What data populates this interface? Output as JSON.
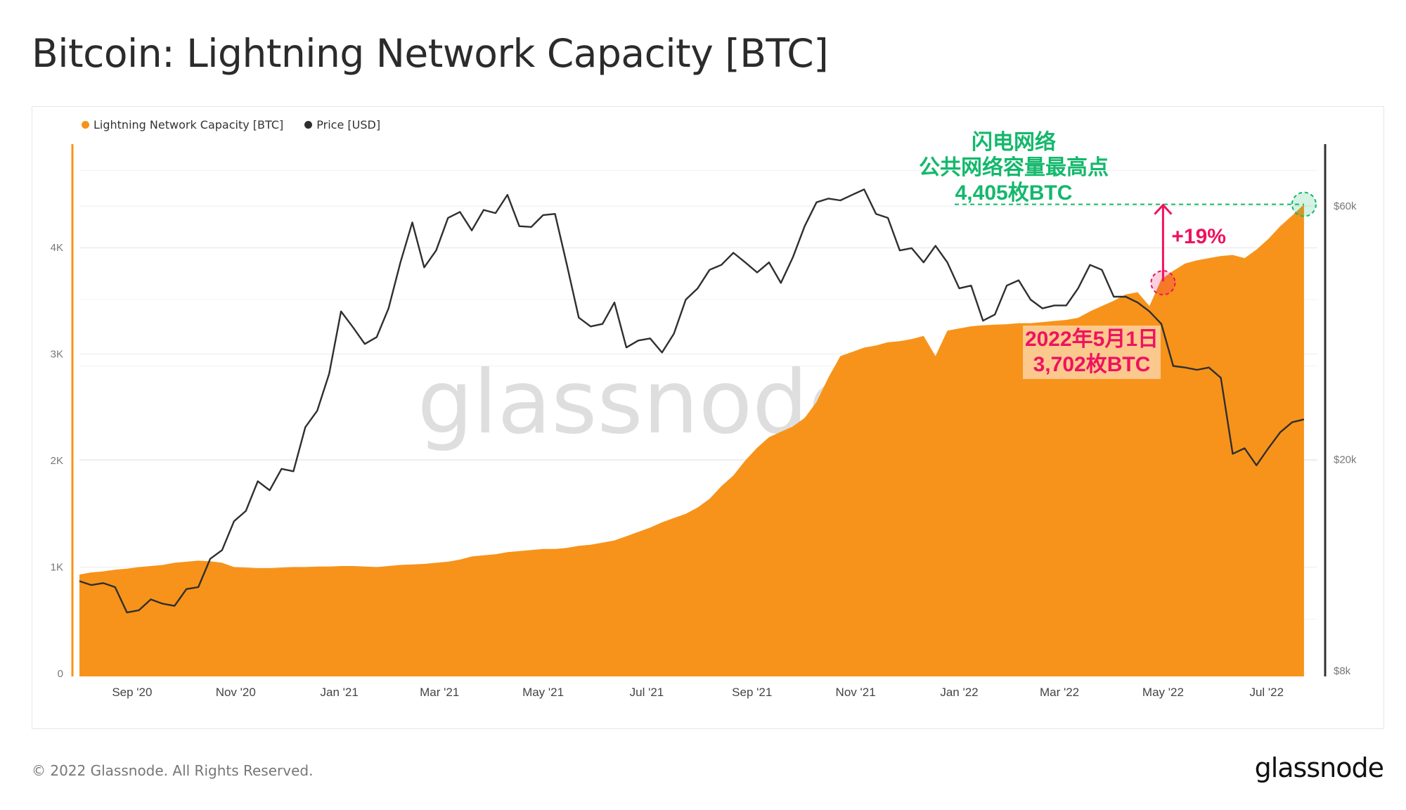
{
  "title": "Bitcoin: Lightning Network Capacity [BTC]",
  "footer": "© 2022 Glassnode. All Rights Reserved.",
  "logo": "glassnode",
  "colors": {
    "capacity": "#f7931a",
    "price": "#2f2f2f",
    "green": "#14b86c",
    "pink": "#f0125f",
    "label_bg": "#fbc98e"
  },
  "chart_data": {
    "type": "area",
    "title": "Bitcoin: Lightning Network Capacity [BTC]",
    "watermark": "glassnode",
    "legend": [
      "Lightning Network Capacity [BTC]",
      "Price [USD]"
    ],
    "legend_position": "top-left",
    "start_date": "2020-08-01",
    "interval_days": 7,
    "x_ticks": [
      {
        "label": "Sep '20",
        "date": "2020-09-01"
      },
      {
        "label": "Nov '20",
        "date": "2020-11-01"
      },
      {
        "label": "Jan '21",
        "date": "2021-01-01"
      },
      {
        "label": "Mar '21",
        "date": "2021-03-01"
      },
      {
        "label": "May '21",
        "date": "2021-05-01"
      },
      {
        "label": "Jul '21",
        "date": "2021-07-01"
      },
      {
        "label": "Sep '21",
        "date": "2021-09-01"
      },
      {
        "label": "Nov '21",
        "date": "2021-11-01"
      },
      {
        "label": "Jan '22",
        "date": "2022-01-01"
      },
      {
        "label": "Mar '22",
        "date": "2022-03-01"
      },
      {
        "label": "May '22",
        "date": "2022-05-01"
      },
      {
        "label": "Jul '22",
        "date": "2022-07-01"
      }
    ],
    "y_left": {
      "label": "Lightning Network Capacity [BTC]",
      "range": [
        0,
        5000
      ],
      "ticks": [
        {
          "v": 0,
          "label": "0"
        },
        {
          "v": 1000,
          "label": "1K"
        },
        {
          "v": 2000,
          "label": "2K"
        },
        {
          "v": 3000,
          "label": "3K"
        },
        {
          "v": 4000,
          "label": "4K"
        }
      ]
    },
    "y_right": {
      "label": "Price [USD]",
      "scale": "log",
      "range": [
        8000,
        90000
      ],
      "ticks": [
        {
          "v": 8000,
          "label": "$8k"
        },
        {
          "v": 20000,
          "label": "$20k"
        },
        {
          "v": 60000,
          "label": "$60k"
        }
      ]
    },
    "grid": true,
    "series": [
      {
        "name": "Lightning Network Capacity [BTC]",
        "type": "area",
        "axis": "left",
        "values": [
          930,
          950,
          960,
          975,
          985,
          1000,
          1010,
          1020,
          1040,
          1050,
          1060,
          1055,
          1040,
          1000,
          995,
          990,
          990,
          995,
          1000,
          1000,
          1005,
          1005,
          1010,
          1010,
          1005,
          1000,
          1010,
          1020,
          1025,
          1030,
          1040,
          1050,
          1070,
          1100,
          1110,
          1120,
          1140,
          1150,
          1160,
          1170,
          1170,
          1180,
          1200,
          1210,
          1230,
          1250,
          1290,
          1330,
          1370,
          1420,
          1460,
          1500,
          1560,
          1640,
          1760,
          1860,
          2000,
          2120,
          2220,
          2270,
          2320,
          2400,
          2550,
          2780,
          2980,
          3020,
          3060,
          3080,
          3110,
          3120,
          3140,
          3170,
          2980,
          3220,
          3240,
          3260,
          3270,
          3275,
          3280,
          3290,
          3290,
          3300,
          3310,
          3320,
          3340,
          3400,
          3450,
          3500,
          3560,
          3580,
          3450,
          3702,
          3780,
          3850,
          3880,
          3900,
          3920,
          3930,
          3900,
          3980,
          4080,
          4200,
          4300,
          4405
        ]
      },
      {
        "name": "Price [USD]",
        "type": "line",
        "axis": "right",
        "values": [
          11800,
          11600,
          11700,
          11500,
          10300,
          10400,
          10900,
          10700,
          10600,
          11400,
          11500,
          13000,
          13500,
          15300,
          16000,
          18200,
          17500,
          19200,
          19000,
          23000,
          24700,
          29000,
          38000,
          35500,
          33000,
          34000,
          38500,
          47000,
          55900,
          46000,
          49500,
          57000,
          58500,
          54000,
          59000,
          58200,
          63000,
          55000,
          54800,
          57700,
          58000,
          46500,
          37000,
          35600,
          36000,
          39500,
          32500,
          33500,
          33800,
          31800,
          34500,
          40000,
          42000,
          45500,
          46500,
          49000,
          47000,
          45000,
          47000,
          43000,
          48000,
          55000,
          61000,
          62000,
          61500,
          63000,
          64500,
          58000,
          57000,
          49500,
          50000,
          47000,
          50500,
          47000,
          42000,
          42500,
          36500,
          37500,
          42500,
          43500,
          40000,
          38500,
          39000,
          39000,
          42000,
          46500,
          45500,
          40500,
          40500,
          39500,
          38000,
          36000,
          30000,
          29800,
          29500,
          29800,
          28500,
          20500,
          21000,
          19500,
          21000,
          22500,
          23500,
          23800
        ]
      }
    ],
    "annotations": {
      "peak": {
        "lines": [
          "闪电网络",
          "公共网络容量最高点",
          "4,405枚BTC"
        ],
        "value": 4405
      },
      "reference": {
        "lines": [
          "2022年5月1日",
          "3,702枚BTC"
        ],
        "value": 3702,
        "date": "2022-05-01"
      },
      "change": "+19%"
    }
  }
}
